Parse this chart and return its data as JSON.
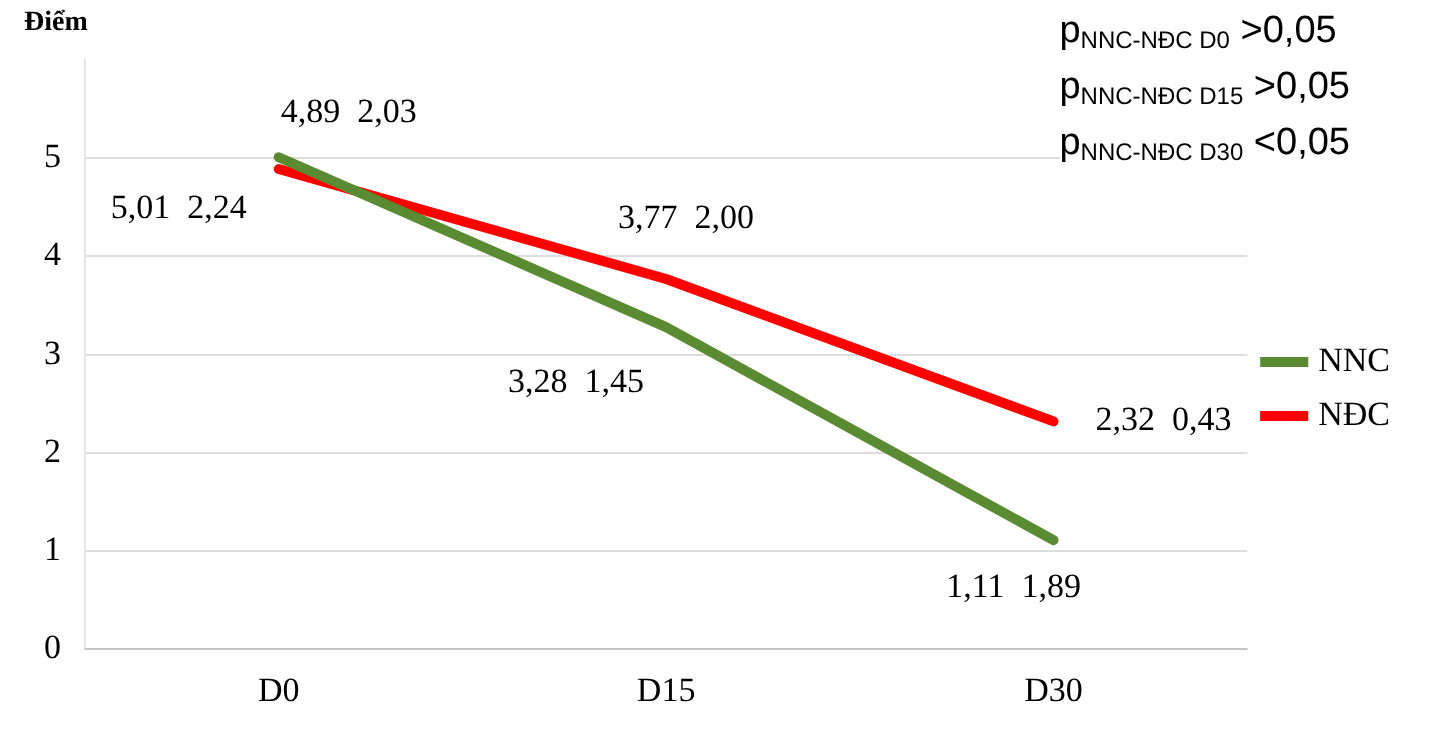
{
  "chart_data": {
    "type": "line",
    "ylabel": "Điểm",
    "categories": [
      "D0",
      "D15",
      "D30"
    ],
    "series": [
      {
        "name": "NNC",
        "color": "#5a8a32",
        "values": [
          5.01,
          3.28,
          1.11
        ],
        "value_labels": [
          "5,01  2,24",
          "3,28  1,45",
          "1,11  1,89"
        ]
      },
      {
        "name": "NĐC",
        "color": "#ff0000",
        "values": [
          4.89,
          3.77,
          2.32
        ],
        "value_labels": [
          "4,89  2,03",
          "3,77  2,00",
          "2,32  0,43"
        ]
      }
    ],
    "ylim": [
      0,
      6
    ],
    "yticks": [
      0,
      1,
      2,
      3,
      4,
      5
    ],
    "grid": "y",
    "legend": "right",
    "marker": "none",
    "line_style": "solid",
    "annotations": [
      "p$_{NNC-NĐC D0}$ >0,05",
      "p$_{NNC-NĐC D15}$ >0,05",
      "p$_{NNC-NĐC D30}$ <0,05"
    ]
  }
}
